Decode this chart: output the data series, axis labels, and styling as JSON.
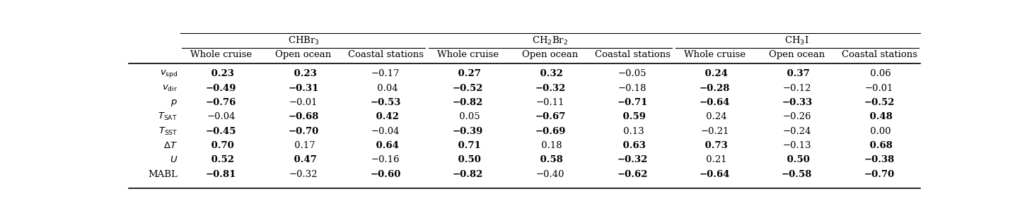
{
  "col_groups": [
    {
      "label": "CHBr$_3$"
    },
    {
      "label": "CH$_2$Br$_2$"
    },
    {
      "label": "CH$_3$I"
    }
  ],
  "sub_labels": [
    "Whole cruise",
    "Open ocean",
    "Coastal stations"
  ],
  "row_labels": [
    "$v_{\\mathrm{spd}}$",
    "$v_{\\mathrm{dir}}$",
    "$p$",
    "$T_{\\mathrm{SAT}}$",
    "$T_{\\mathrm{SST}}$",
    "$\\Delta T$",
    "$U$",
    "MABL"
  ],
  "data": [
    [
      " 0.23",
      " 0.23",
      "−0.17",
      " 0.27",
      " 0.32",
      "−0.05",
      " 0.24",
      " 0.37",
      " 0.06"
    ],
    [
      "−0.49",
      "−0.31",
      " 0.04",
      "−0.52",
      "−0.32",
      "−0.18",
      "−0.28",
      "−0.12",
      "−0.01"
    ],
    [
      "−0.76",
      "−0.01",
      "−0.53",
      "−0.82",
      "−0.11",
      "−0.71",
      "−0.64",
      "−0.33",
      "−0.52"
    ],
    [
      "−0.04",
      "−0.68",
      " 0.42",
      " 0.05",
      "−0.67",
      " 0.59",
      " 0.24",
      "−0.26",
      " 0.48"
    ],
    [
      "−0.45",
      "−0.70",
      "−0.04",
      "−0.39",
      "−0.69",
      " 0.13",
      "−0.21",
      "−0.24",
      " 0.00"
    ],
    [
      " 0.70",
      " 0.17",
      " 0.64",
      " 0.71",
      " 0.18",
      " 0.63",
      " 0.73",
      "−0.13",
      " 0.68"
    ],
    [
      " 0.52",
      " 0.47",
      "−0.16",
      " 0.50",
      " 0.58",
      "−0.32",
      " 0.21",
      " 0.50",
      "−0.38"
    ],
    [
      "−0.81",
      "−0.32",
      "−0.60",
      "−0.82",
      "−0.40",
      "−0.62",
      "−0.64",
      "−0.58",
      "−0.70"
    ]
  ],
  "bold": [
    [
      true,
      true,
      false,
      true,
      true,
      false,
      true,
      true,
      false
    ],
    [
      true,
      true,
      false,
      true,
      true,
      false,
      true,
      false,
      false
    ],
    [
      true,
      false,
      true,
      true,
      false,
      true,
      true,
      true,
      true
    ],
    [
      false,
      true,
      true,
      false,
      true,
      true,
      false,
      false,
      true
    ],
    [
      true,
      true,
      false,
      true,
      true,
      false,
      false,
      false,
      false
    ],
    [
      true,
      false,
      true,
      true,
      false,
      true,
      true,
      false,
      true
    ],
    [
      true,
      true,
      false,
      true,
      true,
      true,
      false,
      true,
      true
    ],
    [
      true,
      false,
      true,
      true,
      false,
      true,
      true,
      true,
      true
    ]
  ],
  "background_color": "#ffffff",
  "text_color": "#000000",
  "font_size": 9.5,
  "header_font_size": 9.5,
  "fig_width": 14.52,
  "fig_height": 3.12
}
